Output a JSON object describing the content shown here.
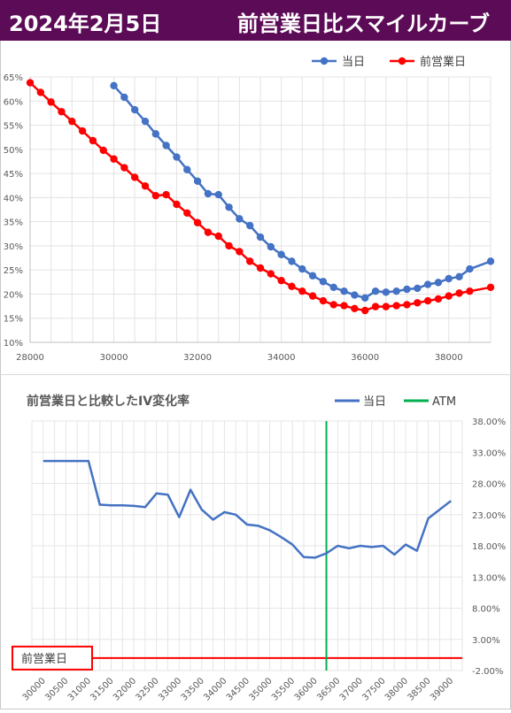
{
  "header": {
    "date": "2024年2月5日",
    "title": "前営業日比スマイルカーブ"
  },
  "chart_data": [
    {
      "type": "line",
      "title": "",
      "legend_position": "top-right",
      "x_ticks": [
        "28000",
        "30000",
        "32000",
        "34000",
        "36000",
        "38000"
      ],
      "y_ticks": [
        "10%",
        "15%",
        "20%",
        "25%",
        "30%",
        "35%",
        "40%",
        "45%",
        "50%",
        "55%",
        "60%",
        "65%"
      ],
      "xlim": [
        28000,
        39000
      ],
      "ylim": [
        10,
        65
      ],
      "grid": true,
      "series": [
        {
          "name": "当日",
          "color": "#4472c4",
          "points": [
            [
              30000,
              63.2
            ],
            [
              30250,
              60.8
            ],
            [
              30500,
              58.2
            ],
            [
              30750,
              55.8
            ],
            [
              31000,
              53.2
            ],
            [
              31250,
              50.8
            ],
            [
              31500,
              48.4
            ],
            [
              31750,
              45.8
            ],
            [
              32000,
              43.4
            ],
            [
              32250,
              40.8
            ],
            [
              32500,
              40.6
            ],
            [
              32750,
              38.0
            ],
            [
              33000,
              35.6
            ],
            [
              33250,
              34.2
            ],
            [
              33500,
              31.8
            ],
            [
              33750,
              29.8
            ],
            [
              34000,
              28.2
            ],
            [
              34250,
              26.8
            ],
            [
              34500,
              25.2
            ],
            [
              34750,
              23.8
            ],
            [
              35000,
              22.6
            ],
            [
              35250,
              21.4
            ],
            [
              35500,
              20.6
            ],
            [
              35750,
              19.8
            ],
            [
              36000,
              19.2
            ],
            [
              36250,
              20.6
            ],
            [
              36500,
              20.4
            ],
            [
              36750,
              20.6
            ],
            [
              37000,
              21.0
            ],
            [
              37250,
              21.2
            ],
            [
              37500,
              22.0
            ],
            [
              37750,
              22.4
            ],
            [
              38000,
              23.2
            ],
            [
              38250,
              23.6
            ],
            [
              38500,
              25.2
            ],
            [
              39000,
              26.8
            ]
          ]
        },
        {
          "name": "前営業日",
          "color": "#ff0000",
          "points": [
            [
              28000,
              63.8
            ],
            [
              28250,
              61.8
            ],
            [
              28500,
              59.8
            ],
            [
              28750,
              57.8
            ],
            [
              29000,
              55.8
            ],
            [
              29250,
              53.8
            ],
            [
              29500,
              51.8
            ],
            [
              29750,
              49.8
            ],
            [
              30000,
              48.0
            ],
            [
              30250,
              46.2
            ],
            [
              30500,
              44.2
            ],
            [
              30750,
              42.4
            ],
            [
              31000,
              40.4
            ],
            [
              31250,
              40.6
            ],
            [
              31500,
              38.6
            ],
            [
              31750,
              36.8
            ],
            [
              32000,
              34.8
            ],
            [
              32250,
              32.8
            ],
            [
              32500,
              32.0
            ],
            [
              32750,
              30.0
            ],
            [
              33000,
              28.8
            ],
            [
              33250,
              26.8
            ],
            [
              33500,
              25.4
            ],
            [
              33750,
              24.2
            ],
            [
              34000,
              22.8
            ],
            [
              34250,
              21.6
            ],
            [
              34500,
              20.6
            ],
            [
              34750,
              19.6
            ],
            [
              35000,
              18.6
            ],
            [
              35250,
              17.8
            ],
            [
              35500,
              17.6
            ],
            [
              35750,
              17.0
            ],
            [
              36000,
              16.6
            ],
            [
              36250,
              17.4
            ],
            [
              36500,
              17.4
            ],
            [
              36750,
              17.6
            ],
            [
              37000,
              17.8
            ],
            [
              37250,
              18.2
            ],
            [
              37500,
              18.6
            ],
            [
              37750,
              19.0
            ],
            [
              38000,
              19.6
            ],
            [
              38250,
              20.2
            ],
            [
              38500,
              20.6
            ],
            [
              39000,
              21.4
            ]
          ]
        }
      ]
    },
    {
      "type": "line",
      "title": "前営業日と比較したIV変化率",
      "legend_position": "top-right",
      "categories": [
        "30000",
        "30500",
        "31000",
        "31500",
        "32000",
        "32500",
        "33000",
        "33500",
        "34000",
        "34500",
        "35000",
        "35500",
        "36000",
        "36500",
        "37000",
        "37500",
        "38000",
        "38500",
        "39000"
      ],
      "y_ticks": [
        "-2.00%",
        "3.00%",
        "8.00%",
        "13.00%",
        "18.00%",
        "23.00%",
        "28.00%",
        "33.00%",
        "38.00%"
      ],
      "ylim": [
        -2,
        38
      ],
      "grid": true,
      "atm": 36250,
      "baseline_label": "前営業日",
      "series": [
        {
          "name": "当日",
          "color": "#4472c4",
          "points": [
            [
              30000,
              31.6
            ],
            [
              30250,
              31.6
            ],
            [
              30500,
              31.6
            ],
            [
              30750,
              31.6
            ],
            [
              31000,
              31.6
            ],
            [
              31250,
              24.6
            ],
            [
              31500,
              24.5
            ],
            [
              31750,
              24.5
            ],
            [
              32000,
              24.4
            ],
            [
              32250,
              24.2
            ],
            [
              32500,
              26.4
            ],
            [
              32750,
              26.2
            ],
            [
              33000,
              22.6
            ],
            [
              33250,
              27.0
            ],
            [
              33500,
              23.8
            ],
            [
              33750,
              22.2
            ],
            [
              34000,
              23.4
            ],
            [
              34250,
              23.0
            ],
            [
              34500,
              21.4
            ],
            [
              34750,
              21.2
            ],
            [
              35000,
              20.5
            ],
            [
              35250,
              19.4
            ],
            [
              35500,
              18.2
            ],
            [
              35750,
              16.2
            ],
            [
              36000,
              16.1
            ],
            [
              36250,
              16.8
            ],
            [
              36500,
              18.0
            ],
            [
              36750,
              17.6
            ],
            [
              37000,
              18.0
            ],
            [
              37250,
              17.8
            ],
            [
              37500,
              18.0
            ],
            [
              37750,
              16.6
            ],
            [
              38000,
              18.2
            ],
            [
              38250,
              17.2
            ],
            [
              38500,
              22.4
            ],
            [
              39000,
              25.2
            ]
          ]
        },
        {
          "name": "ATM",
          "color": "#00b050"
        },
        {
          "name": "前営業日",
          "color": "#ff0000",
          "value": 0
        }
      ]
    }
  ]
}
